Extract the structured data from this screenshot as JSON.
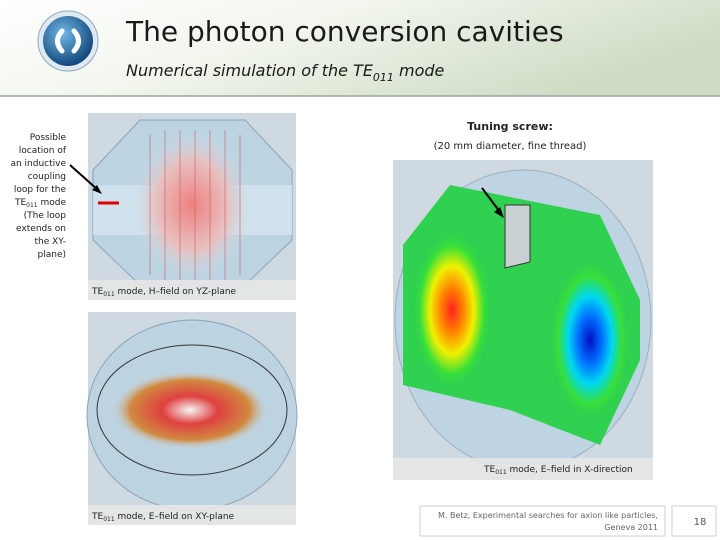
{
  "header": {
    "title": "The photon conversion cavities",
    "subtitle": {
      "text": "Numerical simulation of the TE",
      "sub": "011",
      "after": " mode"
    }
  },
  "annotation": {
    "lines": [
      "Possible",
      "location of",
      "an inductive",
      "coupling",
      "loop for the"
    ],
    "te": "TE",
    "sub": "011",
    "after": " mode",
    "lines2": [
      "(The loop",
      "extends on",
      "the XY-",
      "plane)"
    ]
  },
  "screw": {
    "title": "Tuning screw:",
    "detail": "(20 mm diameter, fine thread)"
  },
  "captions": [
    {
      "text": "TE",
      "sub": "011",
      "after": " mode, H–field on YZ-plane"
    },
    {
      "text": "TE",
      "sub": "011",
      "after": " mode, E–field on XY-plane"
    },
    {
      "text": "TE",
      "sub": "011",
      "after": " mode, E–field in X-direction"
    }
  ],
  "footer": {
    "lines": [
      "M. Betz, Experimental searches for axion like particles,",
      "Geneva 2011"
    ],
    "page": "18"
  }
}
